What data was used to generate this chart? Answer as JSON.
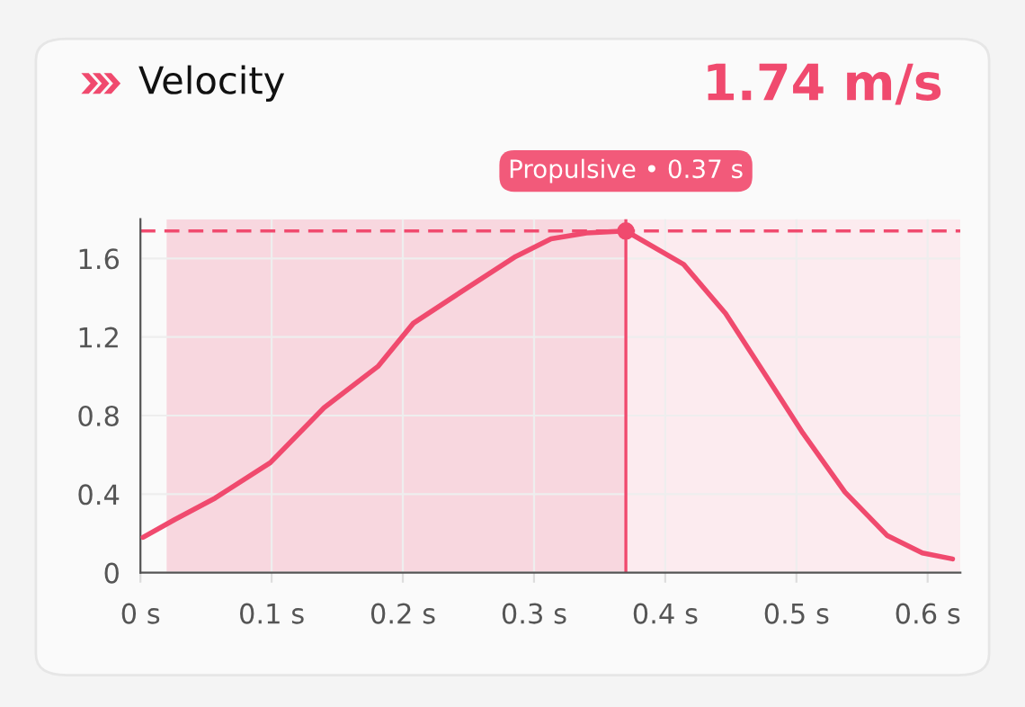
{
  "chart_data": {
    "type": "line",
    "title": "Velocity",
    "subtitle": "1.74 m/s",
    "x": [
      0.002,
      0.026,
      0.057,
      0.099,
      0.14,
      0.181,
      0.208,
      0.249,
      0.286,
      0.313,
      0.34,
      0.37,
      0.414,
      0.446,
      0.478,
      0.505,
      0.537,
      0.569,
      0.596,
      0.619
    ],
    "series": [
      {
        "color": "#f04a6e",
        "values": [
          0.18,
          0.27,
          0.38,
          0.56,
          0.84,
          1.05,
          1.27,
          1.45,
          1.61,
          1.7,
          1.73,
          1.74,
          1.57,
          1.32,
          0.99,
          0.71,
          0.41,
          0.19,
          0.1,
          0.07
        ]
      }
    ],
    "xlim": [
      0,
      0.625
    ],
    "ylim": [
      0,
      1.8
    ],
    "xticks": [
      {
        "value": 0,
        "label": "0 s"
      },
      {
        "value": 0.1,
        "label": "0.1 s"
      },
      {
        "value": 0.2,
        "label": "0.2 s"
      },
      {
        "value": 0.3,
        "label": "0.3 s"
      },
      {
        "value": 0.4,
        "label": "0.4 s"
      },
      {
        "value": 0.5,
        "label": "0.5 s"
      },
      {
        "value": 0.6,
        "label": "0.6 s"
      }
    ],
    "yticks": [
      0,
      0.4,
      0.8,
      1.2,
      1.6
    ],
    "bands": [
      {
        "axis": "x",
        "from": 0.02,
        "to": 0.37,
        "color": "#f8d7df"
      },
      {
        "axis": "x",
        "from": 0.37,
        "to": 0.625,
        "color": "#fcebef"
      }
    ],
    "ref_lines": [
      {
        "axis": "y",
        "value": 1.74,
        "color": "#f04a6e",
        "line_style": "dashed"
      },
      {
        "axis": "x",
        "value": 0.37,
        "color": "#f04a6e",
        "line_style": "solid"
      }
    ],
    "annotations": [
      {
        "text": "Propulsive • 0.37 s",
        "x": 0.37,
        "y": 1.74
      }
    ],
    "grid": true,
    "marker": "none",
    "line_style": "solid"
  }
}
